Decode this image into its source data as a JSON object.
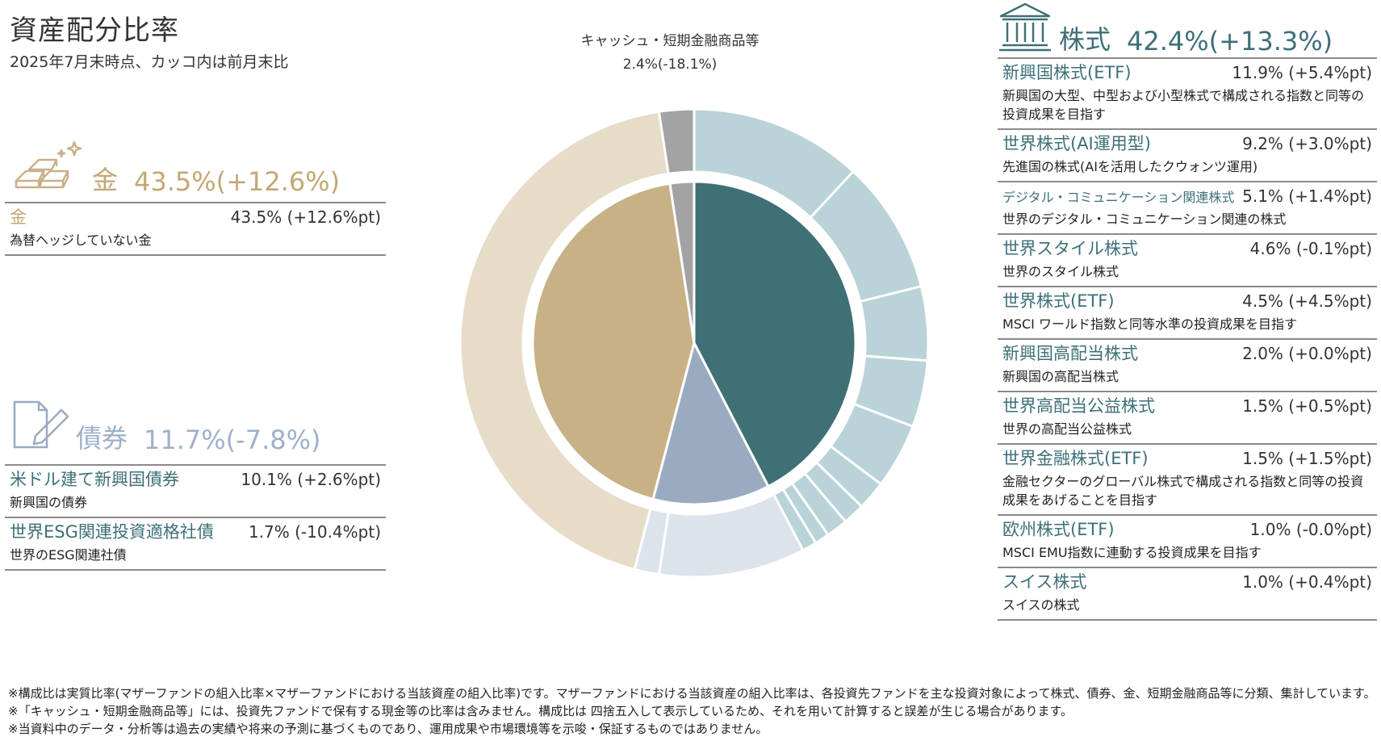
{
  "title": "資産配分比率",
  "subtitle": "2025年7月末時点、カッコ内は前月末比",
  "colors": {
    "gold": "#c8b187",
    "gold_light": "#e6dcc8",
    "bond": "#9aabc1",
    "bond_light": "#dde3ea",
    "equity": "#3f7076",
    "equity_light": "#b9d3d8",
    "cash": "#a3a3a3",
    "teal_text": "#3d6f79"
  },
  "gold": {
    "icon": "gold-bars-icon",
    "label": "金",
    "value": "43.5%(+12.6%)",
    "items": [
      {
        "name": "金",
        "value": "43.5% (+12.6%pt)",
        "desc": "為替ヘッジしていない金"
      }
    ]
  },
  "bonds": {
    "icon": "document-pencil-icon",
    "label": "債券",
    "value": "11.7%(-7.8%)",
    "items": [
      {
        "name": "米ドル建て新興国債券",
        "value": "10.1% (+2.6%pt)",
        "desc": "新興国の債券"
      },
      {
        "name": "世界ESG関連投資適格社債",
        "value": "1.7% (-10.4%pt)",
        "desc": "世界のESG関連社債"
      }
    ]
  },
  "equity": {
    "icon": "bank-building-icon",
    "label": "株式",
    "value": "42.4%(+13.3%)",
    "items": [
      {
        "name": "新興国株式(ETF)",
        "value": "11.9% (+5.4%pt)",
        "desc": "新興国の大型、中型および小型株式で構成される指数と同等の投資成果を目指す"
      },
      {
        "name": "世界株式(AI運用型)",
        "value": "9.2% (+3.0%pt)",
        "desc": "先進国の株式(AIを活用したクウォンツ運用)"
      },
      {
        "name": "デジタル・コミュニケーション関連株式",
        "value": "5.1% (+1.4%pt)",
        "desc": "世界のデジタル・コミュニケーション関連の株式"
      },
      {
        "name": "世界スタイル株式",
        "value": "4.6% (-0.1%pt)",
        "desc": "世界のスタイル株式"
      },
      {
        "name": "世界株式(ETF)",
        "value": "4.5% (+4.5%pt)",
        "desc": "MSCI ワールド指数と同等水準の投資成果を目指す"
      },
      {
        "name": "新興国高配当株式",
        "value": "2.0% (+0.0%pt)",
        "desc": "新興国の高配当株式"
      },
      {
        "name": "世界高配当公益株式",
        "value": "1.5% (+0.5%pt)",
        "desc": "世界の高配当公益株式"
      },
      {
        "name": "世界金融株式(ETF)",
        "value": "1.5% (+1.5%pt)",
        "desc": "金融セクターのグローバル株式で構成される指数と同等の投資成果をあげることを目指す"
      },
      {
        "name": "欧州株式(ETF)",
        "value": "1.0% (-0.0%pt)",
        "desc": "MSCI EMU指数に連動する投資成果を目指す"
      },
      {
        "name": "スイス株式",
        "value": "1.0% (+0.4%pt)",
        "desc": "スイスの株式"
      }
    ]
  },
  "cash": {
    "label": "キャッシュ・短期金融商品等",
    "value": "2.4%(-18.1%)"
  },
  "chart_data": {
    "type": "pie",
    "inner": [
      {
        "name": "株式",
        "value": 42.4,
        "color": "#3f7076"
      },
      {
        "name": "債券",
        "value": 11.7,
        "color": "#9aabc1"
      },
      {
        "name": "金",
        "value": 43.5,
        "color": "#c8b187"
      },
      {
        "name": "キャッシュ・短期金融商品等",
        "value": 2.4,
        "color": "#a3a3a3"
      }
    ],
    "outer": [
      {
        "name": "新興国株式(ETF)",
        "value": 11.9,
        "color": "#b9d3d8"
      },
      {
        "name": "世界株式(AI運用型)",
        "value": 9.2,
        "color": "#b9d3d8"
      },
      {
        "name": "デジタル・コミュニケーション関連株式",
        "value": 5.1,
        "color": "#b9d3d8"
      },
      {
        "name": "世界スタイル株式",
        "value": 4.6,
        "color": "#b9d3d8"
      },
      {
        "name": "世界株式(ETF)",
        "value": 4.5,
        "color": "#b9d3d8"
      },
      {
        "name": "新興国高配当株式",
        "value": 2.0,
        "color": "#b9d3d8"
      },
      {
        "name": "世界高配当公益株式",
        "value": 1.5,
        "color": "#b9d3d8"
      },
      {
        "name": "世界金融株式(ETF)",
        "value": 1.5,
        "color": "#b9d3d8"
      },
      {
        "name": "欧州株式(ETF)",
        "value": 1.0,
        "color": "#b9d3d8"
      },
      {
        "name": "スイス株式",
        "value": 1.0,
        "color": "#b9d3d8"
      },
      {
        "name": "米ドル建て新興国債券",
        "value": 10.1,
        "color": "#dde3ea"
      },
      {
        "name": "世界ESG関連投資適格社債",
        "value": 1.7,
        "color": "#dde3ea"
      },
      {
        "name": "金",
        "value": 43.5,
        "color": "#e6dcc8"
      },
      {
        "name": "キャッシュ・短期金融商品等",
        "value": 2.4,
        "color": "#a3a3a3"
      }
    ]
  },
  "footnotes": [
    "※構成比は実質比率(マザーファンドの組入比率×マザーファンドにおける当該資産の組入比率)です。マザーファンドにおける当該資産の組入比率は、各投資先ファンドを主な投資対象によって株式、債券、金、短期金融商品等に分類、集計しています。※「キャッシュ・短期金融商品等」には、投資先ファンドで保有する現金等の比率は含みません。構成比は 四捨五入して表示しているため、それを用いて計算すると誤差が生じる場合があります。",
    "※当資料中のデータ・分析等は過去の実績や将来の予測に基づくものであり、運用成果や市場環境等を示唆・保証するものではありません。"
  ]
}
